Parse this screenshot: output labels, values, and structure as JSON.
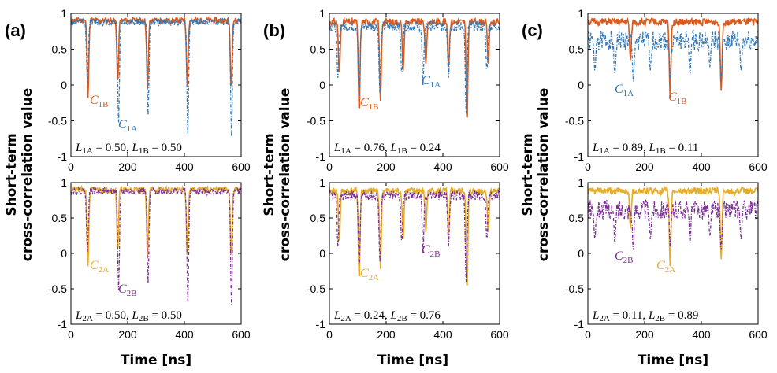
{
  "figure": {
    "panel_letters": [
      "(a)",
      "(b)",
      "(c)"
    ],
    "ylabel_line1": "Short-term",
    "ylabel_line2": "cross-correlation value",
    "xlabel": "Time [ns]"
  },
  "colors": {
    "C1A": "#2f77b7",
    "C1B": "#d95b1e",
    "C2A": "#e6ad28",
    "C2B": "#7b2d94"
  },
  "chart_data": [
    {
      "type": "line",
      "panel": "(a)",
      "row": "top",
      "xlim": [
        0,
        600
      ],
      "ylim": [
        -1,
        1
      ],
      "xticks": [
        0,
        200,
        400,
        600
      ],
      "yticks": [
        -1,
        -0.5,
        0,
        0.5,
        1
      ],
      "ytick_labels": [
        "-1",
        "-0.5",
        "0",
        "0.5",
        "1"
      ],
      "xlabel": "",
      "ylabel": "Short-term cross-correlation value",
      "annotation": "L1A = 0.50, L1B = 0.50",
      "series": [
        {
          "name": "C1B",
          "label_sub": "1B",
          "color": "#d95b1e",
          "style": "solid",
          "baseline": 0.9,
          "noise": 0.04,
          "seed": 11,
          "dips": [
            [
              60,
              -0.18
            ],
            [
              165,
              0.05
            ],
            [
              270,
              -0.05
            ],
            [
              410,
              0.0
            ],
            [
              565,
              -0.05
            ]
          ]
        },
        {
          "name": "C1A",
          "label_sub": "1A",
          "color": "#2f77b7",
          "style": "dashdot",
          "baseline": 0.88,
          "noise": 0.05,
          "seed": 12,
          "dips": [
            [
              58,
              0.02
            ],
            [
              168,
              -0.52
            ],
            [
              272,
              -0.42
            ],
            [
              412,
              -0.68
            ],
            [
              566,
              -0.72
            ]
          ]
        }
      ]
    },
    {
      "type": "line",
      "panel": "(a)",
      "row": "bottom",
      "xlim": [
        0,
        600
      ],
      "ylim": [
        -1,
        1
      ],
      "xticks": [
        0,
        200,
        400,
        600
      ],
      "yticks": [
        -1,
        -0.5,
        0,
        0.5,
        1
      ],
      "ytick_labels": [
        "-1",
        "-0.5",
        "0",
        "0.5",
        "1"
      ],
      "xlabel": "Time [ns]",
      "ylabel": "Short-term cross-correlation value",
      "annotation": "L2A = 0.50, L2B = 0.50",
      "series": [
        {
          "name": "C2A",
          "label_sub": "2A",
          "color": "#e6ad28",
          "style": "solid",
          "baseline": 0.9,
          "noise": 0.04,
          "seed": 21,
          "dips": [
            [
              60,
              -0.18
            ],
            [
              165,
              0.05
            ],
            [
              270,
              -0.05
            ],
            [
              410,
              0.0
            ],
            [
              565,
              -0.05
            ]
          ]
        },
        {
          "name": "C2B",
          "label_sub": "2B",
          "color": "#7b2d94",
          "style": "dashdot",
          "baseline": 0.88,
          "noise": 0.05,
          "seed": 22,
          "dips": [
            [
              58,
              0.02
            ],
            [
              168,
              -0.52
            ],
            [
              272,
              -0.42
            ],
            [
              412,
              -0.68
            ],
            [
              566,
              -0.72
            ]
          ]
        }
      ]
    },
    {
      "type": "line",
      "panel": "(b)",
      "row": "top",
      "xlim": [
        0,
        600
      ],
      "ylim": [
        -1,
        1
      ],
      "xticks": [
        0,
        200,
        400,
        600
      ],
      "yticks": [
        -1,
        -0.5,
        0,
        0.5,
        1
      ],
      "ytick_labels": [
        "-1",
        "-0.5",
        "0",
        "0.5",
        "1"
      ],
      "xlabel": "",
      "ylabel": "Short-term cross-correlation value",
      "annotation": "L1A = 0.76, L1B = 0.24",
      "series": [
        {
          "name": "C1B",
          "label_sub": "1B",
          "color": "#d95b1e",
          "style": "solid",
          "baseline": 0.88,
          "noise": 0.05,
          "seed": 31,
          "dips": [
            [
              35,
              0.15
            ],
            [
              105,
              -0.38
            ],
            [
              180,
              -0.22
            ],
            [
              260,
              0.2
            ],
            [
              340,
              0.3
            ],
            [
              420,
              0.25
            ],
            [
              485,
              -0.52
            ],
            [
              560,
              0.3
            ]
          ]
        },
        {
          "name": "C1A",
          "label_sub": "1A",
          "color": "#2f77b7",
          "style": "dashdot",
          "baseline": 0.82,
          "noise": 0.07,
          "seed": 32,
          "dips": [
            [
              30,
              0.1
            ],
            [
              105,
              -0.2
            ],
            [
              178,
              -0.12
            ],
            [
              255,
              0.15
            ],
            [
              330,
              0.0
            ],
            [
              420,
              0.1
            ],
            [
              482,
              -0.4
            ],
            [
              555,
              0.2
            ]
          ]
        }
      ]
    },
    {
      "type": "line",
      "panel": "(b)",
      "row": "bottom",
      "xlim": [
        0,
        600
      ],
      "ylim": [
        -1,
        1
      ],
      "xticks": [
        0,
        200,
        400,
        600
      ],
      "yticks": [
        -1,
        -0.5,
        0,
        0.5,
        1
      ],
      "ytick_labels": [
        "-1",
        "-0.5",
        "0",
        "0.5",
        "1"
      ],
      "xlabel": "Time [ns]",
      "ylabel": "Short-term cross-correlation value",
      "annotation": "L2A = 0.24, L2B = 0.76",
      "series": [
        {
          "name": "C2A",
          "label_sub": "2A",
          "color": "#e6ad28",
          "style": "solid",
          "baseline": 0.88,
          "noise": 0.05,
          "seed": 41,
          "dips": [
            [
              35,
              0.15
            ],
            [
              105,
              -0.38
            ],
            [
              180,
              -0.22
            ],
            [
              260,
              0.2
            ],
            [
              340,
              0.3
            ],
            [
              420,
              0.25
            ],
            [
              485,
              -0.52
            ],
            [
              560,
              0.3
            ]
          ]
        },
        {
          "name": "C2B",
          "label_sub": "2B",
          "color": "#7b2d94",
          "style": "dashdot",
          "baseline": 0.82,
          "noise": 0.07,
          "seed": 42,
          "dips": [
            [
              30,
              0.1
            ],
            [
              105,
              -0.2
            ],
            [
              178,
              -0.12
            ],
            [
              255,
              0.15
            ],
            [
              330,
              0.0
            ],
            [
              420,
              0.1
            ],
            [
              482,
              -0.4
            ],
            [
              555,
              0.2
            ]
          ]
        }
      ]
    },
    {
      "type": "line",
      "panel": "(c)",
      "row": "top",
      "xlim": [
        0,
        600
      ],
      "ylim": [
        -1,
        1
      ],
      "xticks": [
        0,
        200,
        400,
        600
      ],
      "yticks": [
        -1,
        -0.5,
        0,
        0.5,
        1
      ],
      "ytick_labels": [
        "-1",
        "-0.5",
        "0",
        "0.5",
        "1"
      ],
      "xlabel": "",
      "ylabel": "Short-term cross-correlation value",
      "annotation": "L1A = 0.89, L1B = 0.11",
      "series": [
        {
          "name": "C1B",
          "label_sub": "1B",
          "color": "#d95b1e",
          "style": "solid",
          "baseline": 0.88,
          "noise": 0.05,
          "seed": 51,
          "dips": [
            [
              150,
              0.35
            ],
            [
              290,
              -0.18
            ],
            [
              470,
              -0.08
            ]
          ]
        },
        {
          "name": "C1A",
          "label_sub": "1A",
          "color": "#2f77b7",
          "style": "dashdot",
          "baseline": 0.62,
          "noise": 0.14,
          "seed": 52,
          "dips": [
            [
              25,
              0.2
            ],
            [
              95,
              0.15
            ],
            [
              160,
              0.05
            ],
            [
              220,
              0.2
            ],
            [
              290,
              0.1
            ],
            [
              360,
              0.15
            ],
            [
              430,
              0.25
            ],
            [
              470,
              0.05
            ],
            [
              540,
              0.2
            ]
          ]
        }
      ]
    },
    {
      "type": "line",
      "panel": "(c)",
      "row": "bottom",
      "xlim": [
        0,
        600
      ],
      "ylim": [
        -1,
        1
      ],
      "xticks": [
        0,
        200,
        400,
        600
      ],
      "yticks": [
        -1,
        -0.5,
        0,
        0.5,
        1
      ],
      "ytick_labels": [
        "-1",
        "-0.5",
        "0",
        "0.5",
        "1"
      ],
      "xlabel": "Time [ns]",
      "ylabel": "Short-term cross-correlation value",
      "annotation": "L2A = 0.11, L2B = 0.89",
      "series": [
        {
          "name": "C2A",
          "label_sub": "2A",
          "color": "#e6ad28",
          "style": "solid",
          "baseline": 0.88,
          "noise": 0.05,
          "seed": 61,
          "dips": [
            [
              150,
              0.35
            ],
            [
              290,
              -0.18
            ],
            [
              470,
              -0.08
            ]
          ]
        },
        {
          "name": "C2B",
          "label_sub": "2B",
          "color": "#7b2d94",
          "style": "dashdot",
          "baseline": 0.62,
          "noise": 0.14,
          "seed": 62,
          "dips": [
            [
              25,
              0.2
            ],
            [
              95,
              0.15
            ],
            [
              160,
              0.05
            ],
            [
              220,
              0.2
            ],
            [
              290,
              0.1
            ],
            [
              360,
              0.15
            ],
            [
              430,
              0.25
            ],
            [
              470,
              0.05
            ],
            [
              540,
              0.2
            ]
          ]
        }
      ]
    }
  ]
}
